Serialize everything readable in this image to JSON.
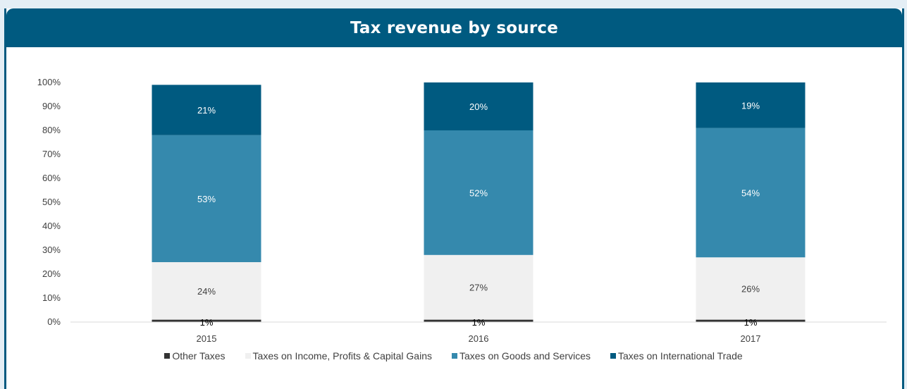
{
  "chart_data": {
    "type": "bar",
    "stacked": true,
    "title": "Tax revenue by source",
    "categories": [
      "2015",
      "2016",
      "2017"
    ],
    "ylim": [
      0,
      100
    ],
    "yticks": [
      "0%",
      "10%",
      "20%",
      "30%",
      "40%",
      "50%",
      "60%",
      "70%",
      "80%",
      "90%",
      "100%"
    ],
    "grid": false,
    "legend_position": "bottom",
    "series": [
      {
        "name": "Other Taxes",
        "values": [
          1,
          1,
          1
        ],
        "labels": [
          "1%",
          "1%",
          "1%"
        ],
        "color": "#333333",
        "label_color": "#000000"
      },
      {
        "name": "Taxes on Income, Profits & Capital Gains",
        "values": [
          24,
          27,
          26
        ],
        "labels": [
          "24%",
          "27%",
          "26%"
        ],
        "color": "#f0f0f0",
        "label_color": "#404040"
      },
      {
        "name": "Taxes on Goods and Services",
        "values": [
          53,
          52,
          54
        ],
        "labels": [
          "53%",
          "52%",
          "54%"
        ],
        "color": "#3589ad",
        "label_color": "#ffffff"
      },
      {
        "name": "Taxes on International Trade",
        "values": [
          21,
          20,
          19
        ],
        "labels": [
          "21%",
          "20%",
          "19%"
        ],
        "color": "#005a80",
        "label_color": "#ffffff"
      }
    ]
  }
}
